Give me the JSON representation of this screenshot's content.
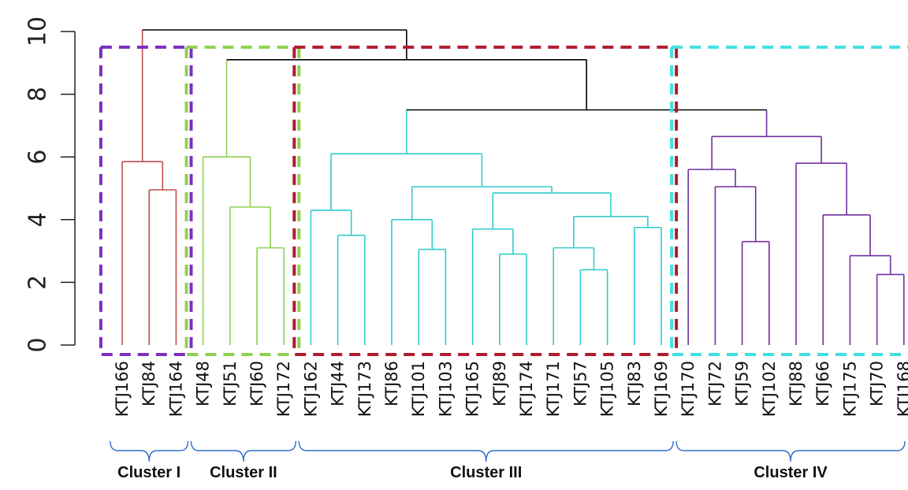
{
  "chart_data": {
    "type": "dendrogram",
    "y_axis": {
      "ticks": [
        "0",
        "2",
        "4",
        "6",
        "8",
        "10"
      ],
      "range": [
        0,
        10
      ]
    },
    "leaves": [
      "KTJ166",
      "KTJ84",
      "KTJ164",
      "KTJ48",
      "KTJ51",
      "KTJ60",
      "KTJ172",
      "KTJ162",
      "KTJ44",
      "KTJ173",
      "KTJ86",
      "KTJ101",
      "KTJ103",
      "KTJ165",
      "KTJ89",
      "KTJ174",
      "KTJ171",
      "KTJ57",
      "KTJ105",
      "KTJ83",
      "KTJ169",
      "KTJ170",
      "KTJ72",
      "KTJ59",
      "KTJ102",
      "KTJ88",
      "KTJ66",
      "KTJ175",
      "KTJ70",
      "KTJ168"
    ],
    "merges": [
      {
        "id": "a1",
        "left": "KTJ84",
        "right": "KTJ164",
        "height": 4.95
      },
      {
        "id": "a2",
        "left": "KTJ166",
        "right": "a1",
        "height": 5.85
      },
      {
        "id": "b1",
        "left": "KTJ60",
        "right": "KTJ172",
        "height": 3.1
      },
      {
        "id": "b2",
        "left": "KTJ51",
        "right": "b1",
        "height": 4.4
      },
      {
        "id": "b3",
        "left": "KTJ48",
        "right": "b2",
        "height": 6.0
      },
      {
        "id": "c1",
        "left": "KTJ44",
        "right": "KTJ173",
        "height": 3.5
      },
      {
        "id": "c2",
        "left": "KTJ162",
        "right": "c1",
        "height": 4.3
      },
      {
        "id": "c3",
        "left": "KTJ101",
        "right": "KTJ103",
        "height": 3.05
      },
      {
        "id": "c4",
        "left": "KTJ86",
        "right": "c3",
        "height": 4.0
      },
      {
        "id": "c5",
        "left": "KTJ89",
        "right": "KTJ174",
        "height": 2.9
      },
      {
        "id": "c6",
        "left": "KTJ165",
        "right": "c5",
        "height": 3.7
      },
      {
        "id": "c7",
        "left": "KTJ57",
        "right": "KTJ105",
        "height": 2.4
      },
      {
        "id": "c8",
        "left": "KTJ171",
        "right": "c7",
        "height": 3.1
      },
      {
        "id": "c9",
        "left": "KTJ83",
        "right": "KTJ169",
        "height": 3.75
      },
      {
        "id": "c10",
        "left": "c8",
        "right": "c9",
        "height": 4.1
      },
      {
        "id": "c11",
        "left": "c6",
        "right": "c10",
        "height": 4.85
      },
      {
        "id": "c12",
        "left": "c4",
        "right": "c11",
        "height": 5.05
      },
      {
        "id": "c13",
        "left": "c2",
        "right": "c12",
        "height": 6.1
      },
      {
        "id": "d1",
        "left": "KTJ59",
        "right": "KTJ102",
        "height": 3.3
      },
      {
        "id": "d2",
        "left": "KTJ72",
        "right": "d1",
        "height": 5.05
      },
      {
        "id": "d3",
        "left": "KTJ170",
        "right": "d2",
        "height": 5.6
      },
      {
        "id": "d4",
        "left": "KTJ70",
        "right": "KTJ168",
        "height": 2.25
      },
      {
        "id": "d5",
        "left": "KTJ175",
        "right": "d4",
        "height": 2.85
      },
      {
        "id": "d6",
        "left": "KTJ66",
        "right": "d5",
        "height": 4.15
      },
      {
        "id": "d7",
        "left": "KTJ88",
        "right": "d6",
        "height": 5.8
      },
      {
        "id": "d8",
        "left": "d3",
        "right": "d7",
        "height": 6.65
      },
      {
        "id": "e1",
        "left": "c13",
        "right": "d8",
        "height": 7.5
      },
      {
        "id": "e2",
        "left": "b3",
        "right": "e1",
        "height": 9.1
      },
      {
        "id": "e3",
        "left": "a2",
        "right": "e2",
        "height": 10.05
      }
    ],
    "clusters": [
      {
        "label": "Cluster I",
        "first": 0,
        "last": 2,
        "box_color": "#7b2fbf",
        "branch_color": "#c0504d"
      },
      {
        "label": "Cluster II",
        "first": 3,
        "last": 6,
        "box_color": "#8fd14f",
        "branch_color": "#8fd14f"
      },
      {
        "label": "Cluster III",
        "first": 7,
        "last": 20,
        "box_color": "#b01c2e",
        "branch_color": "#33cccc"
      },
      {
        "label": "Cluster IV",
        "first": 21,
        "last": 29,
        "box_color": "#40e0e0",
        "branch_color": "#7030a0"
      }
    ],
    "colors": {
      "top_branch": "#000000",
      "bracket": "#2f6fd0",
      "cluster_box_top": 9.5
    }
  }
}
